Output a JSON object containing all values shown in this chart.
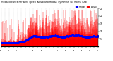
{
  "title": "Milwaukee Weather Wind Speed  Actual and Median  by Minute  (24 Hours) (Old)",
  "n_points": 1440,
  "seed": 42,
  "bg_color": "#ffffff",
  "plot_bg_color": "#ffffff",
  "bar_color": "#ff0000",
  "median_color": "#0000ff",
  "ylim": [
    0,
    25
  ],
  "yticks": [
    5,
    10,
    15,
    20,
    25
  ],
  "ytick_labels": [
    "5",
    "10",
    "15",
    "20",
    "25"
  ],
  "legend_actual": "Actual",
  "legend_median": "Median",
  "legend_actual_color": "#ff0000",
  "legend_median_color": "#0000ff",
  "vline_color": "#aaaaaa",
  "vline_interval": 60,
  "title_fontsize": 2.2,
  "tick_fontsize": 2.2,
  "legend_fontsize": 2.0
}
